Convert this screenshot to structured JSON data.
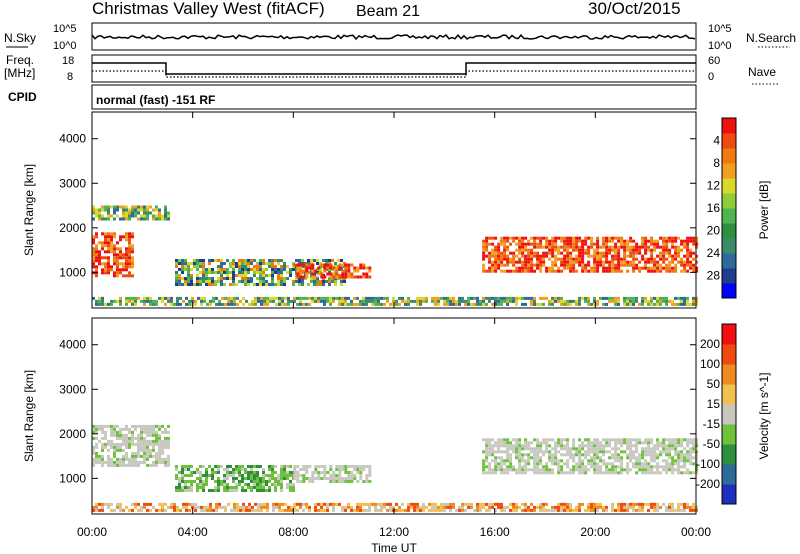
{
  "header": {
    "station": "Christmas Valley West (fitACF)",
    "beam": "Beam 21",
    "date": "30/Oct/2015"
  },
  "noise_panel": {
    "left_label": "N.Sky",
    "left_tick_top": "10^5",
    "left_tick_bottom": "10^0",
    "right_tick_top": "10^5",
    "right_tick_bottom": "10^0",
    "right_label": "N.Search"
  },
  "freq_panel": {
    "left_label_1": "Freq.",
    "left_label_2": "[MHz]",
    "left_tick_top": "18",
    "left_tick_bottom": "8",
    "right_tick_top": "60",
    "right_tick_bottom": "0",
    "right_label": "Nave"
  },
  "cpid_panel": {
    "label": "CPID",
    "text": "normal (fast) -151 RF"
  },
  "chart_data": [
    {
      "type": "heatmap",
      "title": "",
      "ylabel": "Slant Range [km]",
      "xlabel": "",
      "ylim": [
        200,
        4600
      ],
      "yticks": [
        "1000",
        "2000",
        "3000",
        "4000"
      ],
      "colorbar": {
        "label": "Power [dB]",
        "ticks": [
          "4",
          "8",
          "12",
          "16",
          "20",
          "24",
          "28"
        ],
        "colors": [
          "#0000ff",
          "#1e3d8c",
          "#2e6b9a",
          "#3d8a6a",
          "#2f8f3f",
          "#4fb34f",
          "#8fcc3a",
          "#d9d92a",
          "#f0a020",
          "#f07a10",
          "#f04a10",
          "#f01010"
        ]
      },
      "regions_time_hours_range_km": [
        {
          "t0": 0.0,
          "t1": 1.6,
          "r0": 900,
          "r1": 1900,
          "level": "high"
        },
        {
          "t0": 0.0,
          "t1": 3.0,
          "r0": 2200,
          "r1": 2500,
          "level": "low"
        },
        {
          "t0": 3.3,
          "t1": 10.0,
          "r0": 750,
          "r1": 1300,
          "level": "mid"
        },
        {
          "t0": 8.0,
          "t1": 11.0,
          "r0": 900,
          "r1": 1200,
          "level": "high"
        },
        {
          "t0": 15.5,
          "t1": 24.0,
          "r0": 1000,
          "r1": 1800,
          "level": "high"
        },
        {
          "t0": 0.0,
          "t1": 24.0,
          "r0": 250,
          "r1": 450,
          "level": "low"
        }
      ]
    },
    {
      "type": "heatmap",
      "title": "",
      "ylabel": "Slant Range [km]",
      "xlabel": "Time UT",
      "ylim": [
        200,
        4600
      ],
      "yticks": [
        "1000",
        "2000",
        "3000",
        "4000"
      ],
      "xticks": [
        "00:00",
        "04:00",
        "08:00",
        "12:00",
        "16:00",
        "20:00",
        "00:00"
      ],
      "colorbar": {
        "label": "Velocity [m s^-1]",
        "ticks": [
          "200",
          "100",
          "50",
          "15",
          "-15",
          "-50",
          "-100",
          "-200"
        ],
        "colors": [
          "#1e2fbf",
          "#2e6b9a",
          "#2f8f3f",
          "#6ec23a",
          "#c8c8c0",
          "#f0c050",
          "#f08a20",
          "#f04a10",
          "#f01010"
        ]
      },
      "regions_time_hours_range_km": [
        {
          "t0": 0.0,
          "t1": 3.0,
          "r0": 1300,
          "r1": 2200,
          "level": "grey"
        },
        {
          "t0": 3.3,
          "t1": 8.0,
          "r0": 750,
          "r1": 1300,
          "level": "green"
        },
        {
          "t0": 8.0,
          "t1": 11.0,
          "r0": 900,
          "r1": 1300,
          "level": "grey"
        },
        {
          "t0": 15.5,
          "t1": 24.0,
          "r0": 1100,
          "r1": 1900,
          "level": "grey"
        },
        {
          "t0": 0.0,
          "t1": 24.0,
          "r0": 250,
          "r1": 450,
          "level": "orange"
        }
      ]
    }
  ]
}
